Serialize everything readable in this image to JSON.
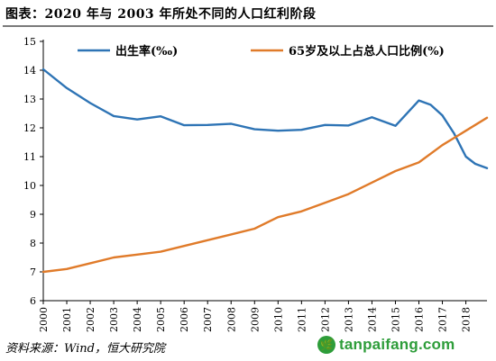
{
  "header": {
    "title": "图表：2020 年与 2003 年所处不同的人口红利阶段"
  },
  "footer": {
    "source": "资料来源：Wind，恒大研究院"
  },
  "watermark": {
    "text": "tanpaifang.com",
    "icon_glyph": "🌿",
    "color": "#2e9d3a"
  },
  "chart_data": {
    "type": "line",
    "title": "",
    "xlabel": "",
    "ylabel": "",
    "ylim": [
      6,
      15
    ],
    "yticks": [
      "6",
      "7",
      "8",
      "9",
      "10",
      "11",
      "12",
      "13",
      "14",
      "15"
    ],
    "xlim": [
      2000,
      2018.9
    ],
    "xticks": [
      "2000",
      "2001",
      "2002",
      "2003",
      "2004",
      "2005",
      "2006",
      "2007",
      "2008",
      "2009",
      "2010",
      "2011",
      "2012",
      "2013",
      "2014",
      "2015",
      "2016",
      "2017",
      "2018"
    ],
    "grid": false,
    "legend": "top",
    "series": [
      {
        "name": "出生率(‰)",
        "color": "#2e74b5",
        "x": [
          2000,
          2001,
          2002,
          2003,
          2004,
          2005,
          2006,
          2007,
          2008,
          2009,
          2010,
          2011,
          2012,
          2013,
          2014,
          2015,
          2016,
          2016.5,
          2017,
          2017.5,
          2018,
          2018.4,
          2018.9
        ],
        "values": [
          14.03,
          13.38,
          12.86,
          12.41,
          12.29,
          12.4,
          12.09,
          12.1,
          12.14,
          11.95,
          11.9,
          11.93,
          12.1,
          12.08,
          12.37,
          12.07,
          12.95,
          12.8,
          12.43,
          11.8,
          11.0,
          10.75,
          10.6
        ]
      },
      {
        "name": "65岁及以上占总人口比例(%)",
        "color": "#e07b2a",
        "x": [
          2000,
          2001,
          2002,
          2003,
          2004,
          2005,
          2006,
          2007,
          2008,
          2009,
          2010,
          2011,
          2012,
          2013,
          2014,
          2015,
          2016,
          2017,
          2018,
          2018.9
        ],
        "values": [
          7.0,
          7.1,
          7.3,
          7.5,
          7.6,
          7.7,
          7.9,
          8.1,
          8.3,
          8.5,
          8.9,
          9.1,
          9.4,
          9.7,
          10.1,
          10.5,
          10.8,
          11.4,
          11.9,
          12.35
        ]
      }
    ]
  }
}
